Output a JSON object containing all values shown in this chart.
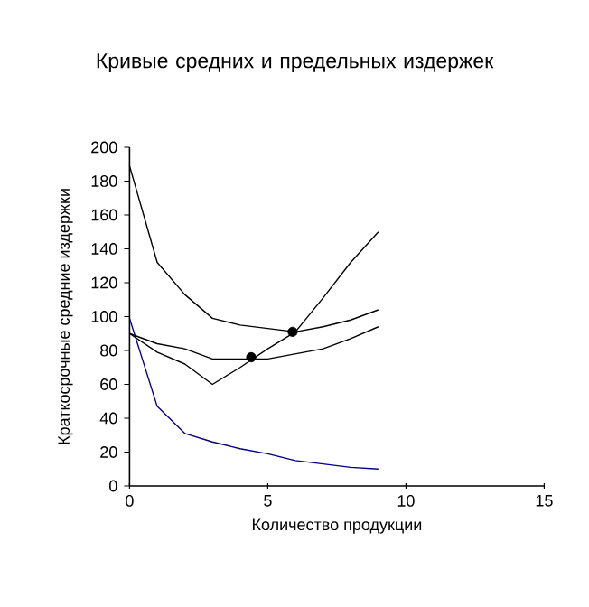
{
  "chart_data": {
    "type": "line",
    "title": "Кривые средних и предельных издержек",
    "xlabel": "Количество продукции",
    "ylabel": "Краткосрочные средние издержки",
    "xlim": [
      0,
      15
    ],
    "xticks": [
      0,
      5,
      10,
      15
    ],
    "ylim": [
      0,
      200
    ],
    "yticks": [
      0,
      20,
      40,
      60,
      80,
      100,
      120,
      140,
      160,
      180,
      200
    ],
    "grid": false,
    "series": [
      {
        "color": "#000000",
        "x": [
          0,
          1,
          2,
          3,
          4,
          5,
          6,
          7,
          8,
          9
        ],
        "values": [
          189,
          132,
          113,
          99,
          95,
          93,
          91,
          94,
          98,
          104
        ]
      },
      {
        "color": "#000000",
        "x": [
          0,
          1,
          2,
          3,
          4,
          5,
          6,
          7,
          8,
          9
        ],
        "values": [
          90,
          84,
          81,
          75,
          75,
          75,
          78,
          81,
          87,
          94
        ]
      },
      {
        "color": "#000000",
        "x": [
          0,
          1,
          2,
          3,
          4,
          5,
          6,
          7,
          8,
          9
        ],
        "values": [
          90,
          79,
          72,
          60,
          70,
          81,
          91,
          111,
          132,
          150
        ]
      },
      {
        "color": "#000080",
        "x": [
          0,
          1,
          2,
          3,
          4,
          5,
          6,
          7,
          8,
          9
        ],
        "values": [
          99,
          47,
          31,
          26,
          22,
          19,
          15,
          13,
          11,
          10
        ]
      },
      {
        "type": "scatter",
        "color": "#000000",
        "marker": "circle",
        "x": [
          4.4,
          5.9
        ],
        "values": [
          76,
          91
        ]
      }
    ]
  }
}
